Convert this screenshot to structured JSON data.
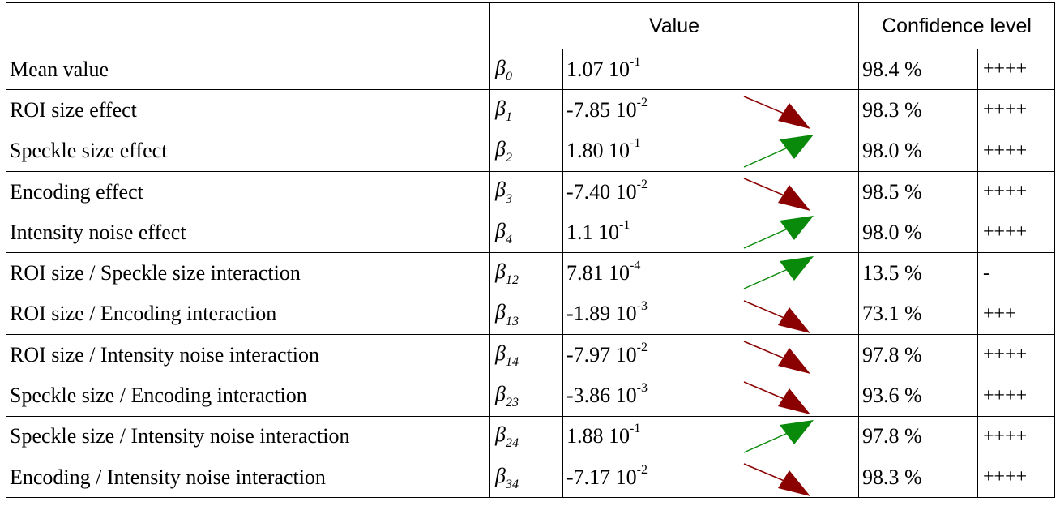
{
  "header": {
    "value_label": "Value",
    "confidence_label": "Confidence level"
  },
  "colors": {
    "arrow_down": "#8b0000",
    "arrow_up": "#0a8a0a",
    "grid": "#000000"
  },
  "rows": [
    {
      "name": "Mean value",
      "beta_sym": "β",
      "beta_idx": "0",
      "mantissa": "1.07 10",
      "exponent": "-1",
      "arrow": "none",
      "confidence": "98.4 %",
      "significance": "++++"
    },
    {
      "name": "ROI size effect",
      "beta_sym": "β",
      "beta_idx": "1",
      "mantissa": "-7.85 10",
      "exponent": "-2",
      "arrow": "down",
      "confidence": "98.3 %",
      "significance": "++++"
    },
    {
      "name": "Speckle size effect",
      "beta_sym": "β",
      "beta_idx": "2",
      "mantissa": "1.80 10",
      "exponent": "-1",
      "arrow": "up",
      "confidence": "98.0 %",
      "significance": "++++"
    },
    {
      "name": "Encoding effect",
      "beta_sym": "β",
      "beta_idx": "3",
      "mantissa": "-7.40 10",
      "exponent": "-2",
      "arrow": "down",
      "confidence": "98.5 %",
      "significance": "++++"
    },
    {
      "name": "Intensity noise effect",
      "beta_sym": "β",
      "beta_idx": "4",
      "mantissa": "1.1 10",
      "exponent": "-1",
      "arrow": "up",
      "confidence": "98.0 %",
      "significance": "++++"
    },
    {
      "name": "ROI size / Speckle size interaction",
      "beta_sym": "β",
      "beta_idx": "12",
      "mantissa": "7.81 10",
      "exponent": "-4",
      "arrow": "up",
      "confidence": "13.5 %",
      "significance": "-"
    },
    {
      "name": "ROI size / Encoding interaction",
      "beta_sym": "β",
      "beta_idx": "13",
      "mantissa": "-1.89 10",
      "exponent": "-3",
      "arrow": "down",
      "confidence": "73.1 %",
      "significance": "+++"
    },
    {
      "name": "ROI size / Intensity noise interaction",
      "beta_sym": "β",
      "beta_idx": "14",
      "mantissa": "-7.97 10",
      "exponent": "-2",
      "arrow": "down",
      "confidence": "97.8 %",
      "significance": "++++"
    },
    {
      "name": "Speckle size / Encoding interaction",
      "beta_sym": "β",
      "beta_idx": "23",
      "mantissa": "-3.86 10",
      "exponent": "-3",
      "arrow": "down",
      "confidence": "93.6 %",
      "significance": "++++"
    },
    {
      "name": "Speckle size / Intensity noise interaction",
      "beta_sym": "β",
      "beta_idx": "24",
      "mantissa": "1.88 10",
      "exponent": "-1",
      "arrow": "up",
      "confidence": "97.8 %",
      "significance": "++++"
    },
    {
      "name": "Encoding / Intensity noise interaction",
      "beta_sym": "β",
      "beta_idx": "34",
      "mantissa": "-7.17 10",
      "exponent": "-2",
      "arrow": "down",
      "confidence": "98.3 %",
      "significance": "++++"
    }
  ]
}
